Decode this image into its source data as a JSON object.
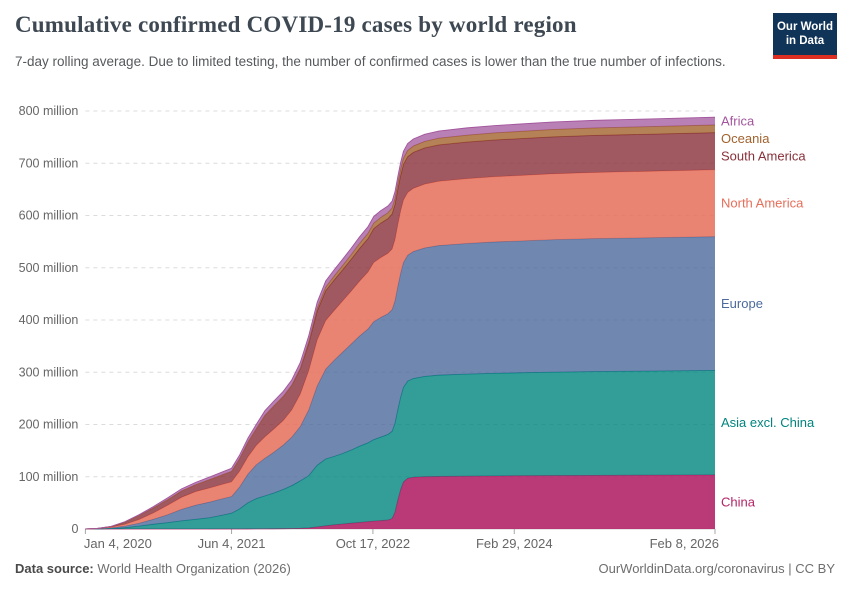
{
  "header": {
    "title": "Cumulative confirmed COVID-19 cases by world region",
    "subtitle": "7-day rolling average. Due to limited testing, the number of confirmed cases is lower than the true number of infections.",
    "logo": {
      "line1": "Our World",
      "line2": "in Data",
      "bg_color": "#103358",
      "bar_color": "#dc2e22"
    }
  },
  "chart_data": {
    "type": "area",
    "stacked": true,
    "title": "Cumulative confirmed COVID-19 cases by world region",
    "x_unit": "days since Jan 4, 2020",
    "ylim": [
      0,
      800
    ],
    "xlim_days": [
      0,
      2227
    ],
    "grid": "dashed-horizontal",
    "legend_position": "right-edge-labels",
    "days": [
      0,
      40,
      90,
      140,
      190,
      240,
      290,
      340,
      390,
      440,
      490,
      517,
      545,
      575,
      605,
      635,
      665,
      700,
      730,
      760,
      790,
      820,
      850,
      880,
      910,
      940,
      970,
      1000,
      1020,
      1045,
      1070,
      1085,
      1095,
      1105,
      1115,
      1125,
      1140,
      1160,
      1200,
      1250,
      1350,
      1450,
      1518,
      1650,
      1800,
      2000,
      2227
    ],
    "series": [
      {
        "name": "China",
        "color": "#b32468",
        "fill_opacity": 0.9,
        "values": [
          0,
          0.02,
          0.05,
          0.08,
          0.09,
          0.1,
          0.1,
          0.1,
          0.1,
          0.1,
          0.12,
          0.15,
          0.2,
          0.25,
          0.3,
          0.4,
          0.5,
          0.7,
          0.9,
          1.2,
          2,
          4,
          6,
          8,
          9.5,
          11,
          12.5,
          14,
          15,
          16,
          17,
          20,
          32,
          55,
          75,
          90,
          97,
          99,
          100,
          100.5,
          101,
          101.5,
          101.8,
          102.2,
          102.6,
          103,
          103.5
        ]
      },
      {
        "name": "Asia excl. China",
        "color": "#00847e",
        "fill_opacity": 0.8,
        "values": [
          0,
          0.2,
          0.8,
          2.5,
          5.5,
          9,
          12,
          15.5,
          18.5,
          21.5,
          27,
          30,
          38,
          50,
          58,
          63,
          68,
          75,
          82,
          91,
          100,
          118,
          128,
          131,
          135,
          140,
          146,
          151,
          156,
          160,
          164,
          167,
          170,
          173,
          177,
          181,
          186,
          189,
          192,
          194,
          195.5,
          196.5,
          197,
          198,
          198.7,
          199.3,
          200
        ]
      },
      {
        "name": "Europe",
        "color": "#4c6a9c",
        "fill_opacity": 0.8,
        "values": [
          0,
          0.3,
          1.2,
          3,
          5.5,
          9.5,
          15,
          22,
          27,
          30,
          31.5,
          32,
          42,
          55,
          65,
          72,
          78,
          85,
          93,
          104,
          126,
          152,
          172,
          184,
          194,
          203,
          211,
          218,
          226,
          229,
          231,
          233,
          234.5,
          236,
          237.5,
          239,
          241,
          243,
          246,
          248,
          250,
          251.5,
          252,
          253.5,
          254.5,
          255.2,
          256
        ]
      },
      {
        "name": "North America",
        "color": "#e56e5a",
        "fill_opacity": 0.85,
        "values": [
          0,
          0.3,
          1.5,
          3.5,
          7,
          12,
          18,
          23,
          26,
          27,
          27.7,
          28,
          30,
          33,
          37,
          41,
          44,
          47,
          52,
          62,
          75,
          88,
          93,
          95,
          98,
          101,
          105,
          109,
          113,
          114.5,
          115.5,
          116,
          117,
          118,
          119,
          119.5,
          120,
          121,
          122,
          123,
          124,
          124.8,
          125.2,
          126,
          126.6,
          127.2,
          128
        ]
      },
      {
        "name": "South America",
        "color": "#883039",
        "fill_opacity": 0.8,
        "values": [
          0,
          0.1,
          1,
          4,
          7.5,
          9.5,
          10.5,
          12,
          13,
          16,
          18.5,
          20,
          24,
          28,
          32,
          41,
          44,
          46,
          47,
          48,
          52,
          55,
          57,
          58.5,
          59.5,
          61,
          62.5,
          64,
          65,
          66,
          66.5,
          67,
          67.3,
          67.6,
          67.9,
          68.2,
          68.5,
          68.8,
          69.2,
          69.5,
          70,
          70.3,
          70.5,
          70.7,
          70.85,
          70.95,
          71
        ]
      },
      {
        "name": "Oceania",
        "color": "#a2622d",
        "fill_opacity": 0.8,
        "values": [
          0,
          0.005,
          0.01,
          0.015,
          0.02,
          0.03,
          0.03,
          0.04,
          0.04,
          0.05,
          0.06,
          0.07,
          0.08,
          0.1,
          0.15,
          0.2,
          0.25,
          0.3,
          0.5,
          1.5,
          3.5,
          5.5,
          6.8,
          7.6,
          8.2,
          8.9,
          9.6,
          10.1,
          10.4,
          10.8,
          11.1,
          11.3,
          11.4,
          11.5,
          11.6,
          11.75,
          11.9,
          12.1,
          12.5,
          12.9,
          13.3,
          13.6,
          13.8,
          14.1,
          14.3,
          14.5,
          14.7
        ]
      },
      {
        "name": "Africa",
        "color": "#a2559c",
        "fill_opacity": 0.75,
        "values": [
          0,
          0.05,
          0.4,
          1,
          1.8,
          2.6,
          3.6,
          4.2,
          4.6,
          5,
          5.6,
          6,
          6.8,
          7.6,
          8.3,
          8.8,
          9.1,
          9.5,
          10,
          10.8,
          11.3,
          11.6,
          11.8,
          12,
          12.2,
          12.4,
          12.6,
          12.8,
          12.9,
          13,
          13.1,
          13.15,
          13.2,
          13.25,
          13.3,
          13.35,
          13.4,
          13.5,
          13.6,
          13.7,
          13.9,
          14,
          14.1,
          14.3,
          14.5,
          14.7,
          15
        ]
      }
    ],
    "x_ticks": [
      {
        "day": 0,
        "label": "Jan 4, 2020",
        "align": "start"
      },
      {
        "day": 517,
        "label": "Jun 4, 2021",
        "align": "middle"
      },
      {
        "day": 1017,
        "label": "Oct 17, 2022",
        "align": "middle"
      },
      {
        "day": 1517,
        "label": "Feb 29, 2024",
        "align": "middle"
      },
      {
        "day": 2227,
        "label": "Feb 8, 2026",
        "align": "end"
      }
    ],
    "y_ticks": [
      {
        "value": 0,
        "label": "0"
      },
      {
        "value": 100,
        "label": "100 million"
      },
      {
        "value": 200,
        "label": "200 million"
      },
      {
        "value": 300,
        "label": "300 million"
      },
      {
        "value": 400,
        "label": "400 million"
      },
      {
        "value": 500,
        "label": "500 million"
      },
      {
        "value": 600,
        "label": "600 million"
      },
      {
        "value": 700,
        "label": "700 million"
      },
      {
        "value": 800,
        "label": "800 million"
      }
    ],
    "colors": {
      "grid": "#dcdcdc",
      "axis_line": "#cccccc",
      "tick_mark": "#a7a7a7",
      "axis_text": "#666666"
    }
  },
  "footer": {
    "source_bold": "Data source:",
    "source_rest": "World Health Organization (2026)",
    "credit": "OurWorldinData.org/coronavirus | CC BY"
  }
}
